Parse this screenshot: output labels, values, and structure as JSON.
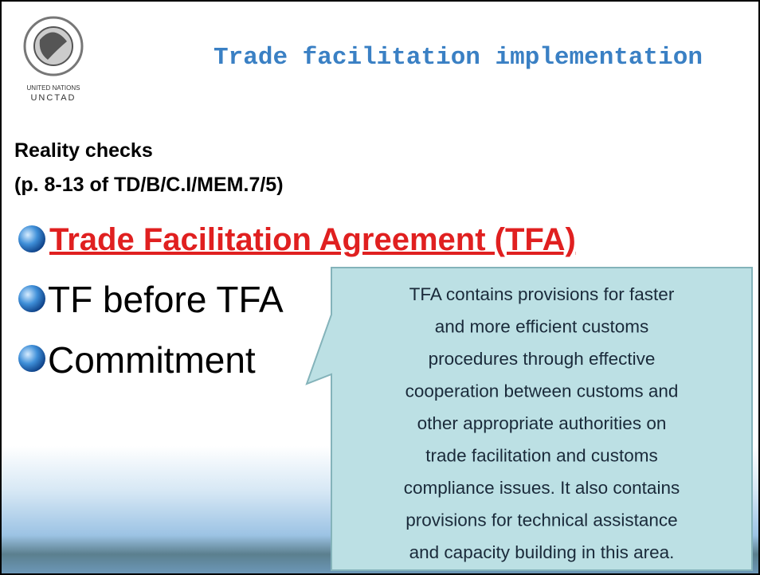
{
  "logo": {
    "line1": "UNITED NATIONS",
    "line2": "UNCTAD"
  },
  "title": "Trade facilitation implementation",
  "subtitle": [
    "Reality checks",
    "(p. 8-13 of TD/B/C.I/MEM.7/5)"
  ],
  "bullets": [
    "Trade Facilitation Agreement (TFA)",
    "TF before TFA",
    "Commitment"
  ],
  "callout": [
    "TFA contains provisions for faster",
    "and more efficient customs",
    "procedures through effective",
    "cooperation between customs and",
    "other appropriate authorities on",
    "trade facilitation and customs",
    "compliance issues. It also contains",
    "provisions for technical assistance",
    "and capacity building in this area."
  ]
}
